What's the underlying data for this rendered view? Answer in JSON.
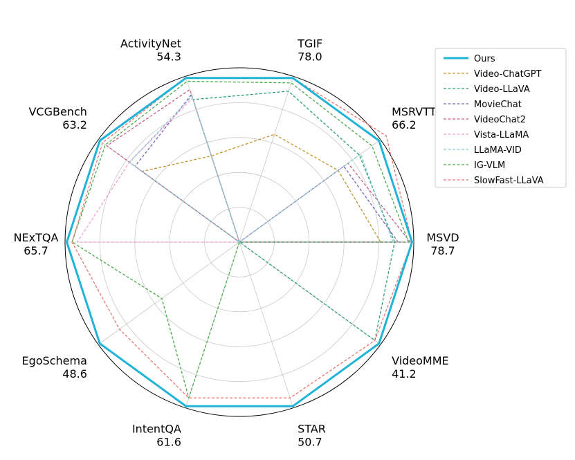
{
  "chart_data": {
    "type": "radar",
    "axes": [
      {
        "name": "MSVD",
        "value": "78.7"
      },
      {
        "name": "MSRVTT",
        "value": "66.2"
      },
      {
        "name": "TGIF",
        "value": "78.0"
      },
      {
        "name": "ActivityNet",
        "value": "54.3"
      },
      {
        "name": "VCGBench",
        "value": "63.2"
      },
      {
        "name": "NExTQA",
        "value": "65.7"
      },
      {
        "name": "EgoSchema",
        "value": "48.6"
      },
      {
        "name": "IntentQA",
        "value": "61.6"
      },
      {
        "name": "STAR",
        "value": "50.7"
      },
      {
        "name": "VideoMME",
        "value": "41.2"
      }
    ],
    "radial_range": [
      0,
      1
    ],
    "grid": true,
    "legend_position": "top-right",
    "series": [
      {
        "name": "Ours",
        "color": "#1fb3d8",
        "dashed": false,
        "values": [
          0.99,
          0.99,
          0.99,
          0.99,
          0.99,
          0.99,
          0.99,
          0.99,
          0.99,
          0.99
        ]
      },
      {
        "name": "Video-ChatGPT",
        "color": "#c7912a",
        "dashed": true,
        "values": [
          0.81,
          0.7,
          0.65,
          0.52,
          0.69,
          0.0,
          0.0,
          0.0,
          0.0,
          0.0
        ]
      },
      {
        "name": "Video-LLaVA",
        "color": "#2a9d74",
        "dashed": true,
        "values": [
          0.89,
          0.85,
          0.91,
          0.86,
          0.0,
          0.0,
          0.0,
          0.0,
          0.0,
          0.96
        ]
      },
      {
        "name": "MovieChat",
        "color": "#7a62b8",
        "dashed": true,
        "values": [
          0.91,
          0.74,
          0.0,
          0.89,
          0.74,
          0.0,
          0.0,
          0.0,
          0.0,
          0.0
        ]
      },
      {
        "name": "VideoChat2",
        "color": "#c85e8e",
        "dashed": true,
        "values": [
          0.98,
          0.77,
          0.0,
          0.92,
          0.94,
          0.0,
          0.0,
          0.0,
          0.0,
          0.0
        ]
      },
      {
        "name": "Vista-LLaMA",
        "color": "#f0a0d0",
        "dashed": true,
        "values": [
          0.94,
          0.0,
          0.0,
          0.87,
          0.78,
          0.93,
          0.0,
          0.0,
          0.0,
          0.0
        ]
      },
      {
        "name": "LLaMA-VID",
        "color": "#86c9d2",
        "dashed": true,
        "values": [
          0.88,
          0.86,
          0.0,
          0.88,
          0.78,
          0.0,
          0.0,
          0.0,
          0.0,
          0.0
        ]
      },
      {
        "name": "IG-VLM",
        "color": "#4aa84a",
        "dashed": true,
        "values": [
          0.97,
          0.94,
          0.96,
          0.97,
          0.95,
          0.96,
          0.55,
          0.94,
          0.0,
          0.0
        ]
      },
      {
        "name": "SlowFast-LLaVA",
        "color": "#e8756d",
        "dashed": true,
        "values": [
          0.99,
          1.04,
          0.99,
          0.99,
          0.97,
          0.96,
          0.85,
          0.94,
          0.94,
          0.96
        ]
      }
    ]
  }
}
